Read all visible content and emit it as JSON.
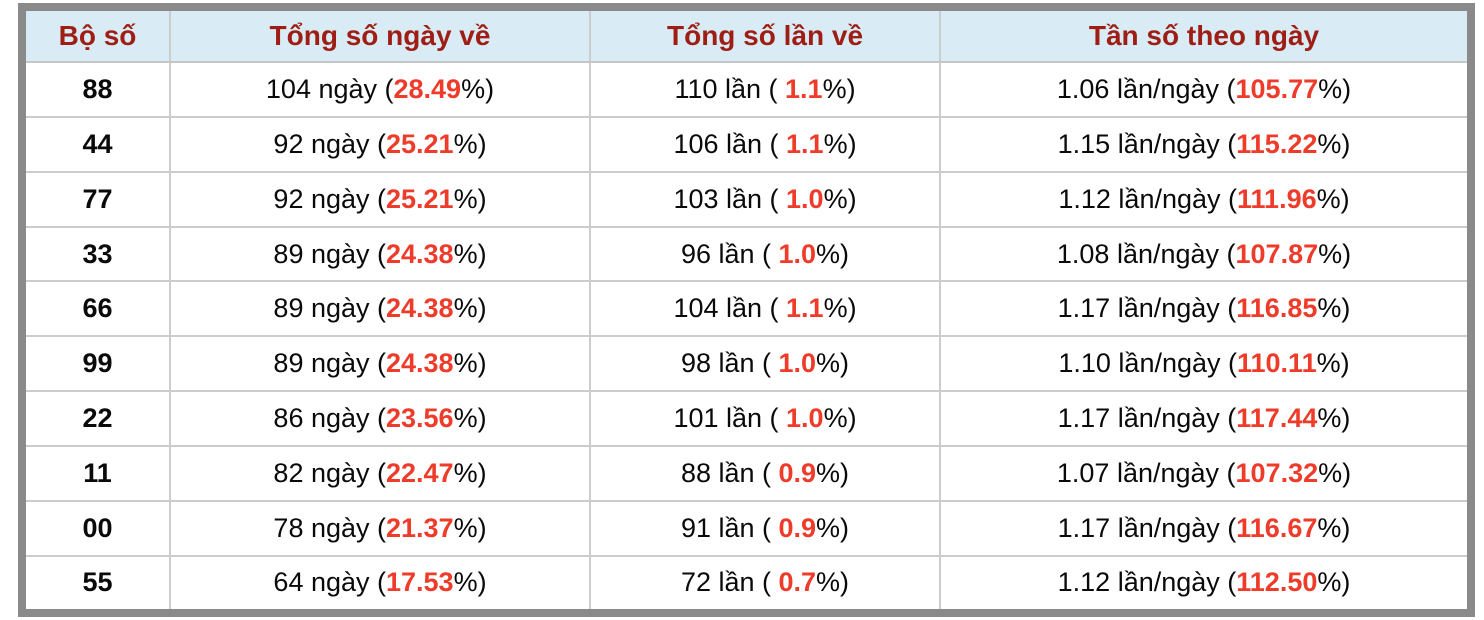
{
  "colors": {
    "frame": "#8a8a8a",
    "header_bg": "#d9ecf5",
    "header_text": "#9e1d15",
    "highlight": "#ee3b2a",
    "gridline": "#cccccc"
  },
  "table": {
    "columns": [
      {
        "label": "Bộ số"
      },
      {
        "label": "Tổng số ngày về"
      },
      {
        "label": "Tổng số lần về"
      },
      {
        "label": "Tần số theo ngày"
      }
    ],
    "rows": [
      {
        "pair": "88",
        "days_pre": "104 ngày (",
        "days_hl": "28.49",
        "days_post": "%)",
        "times_pre": "110 lần ( ",
        "times_hl": "1.1",
        "times_post": "%)",
        "freq_pre": "1.06 lần/ngày (",
        "freq_hl": "105.77",
        "freq_post": "%)"
      },
      {
        "pair": "44",
        "days_pre": "92 ngày (",
        "days_hl": "25.21",
        "days_post": "%)",
        "times_pre": "106 lần ( ",
        "times_hl": "1.1",
        "times_post": "%)",
        "freq_pre": "1.15 lần/ngày (",
        "freq_hl": "115.22",
        "freq_post": "%)"
      },
      {
        "pair": "77",
        "days_pre": "92 ngày (",
        "days_hl": "25.21",
        "days_post": "%)",
        "times_pre": "103 lần ( ",
        "times_hl": "1.0",
        "times_post": "%)",
        "freq_pre": "1.12 lần/ngày (",
        "freq_hl": "111.96",
        "freq_post": "%)"
      },
      {
        "pair": "33",
        "days_pre": "89 ngày (",
        "days_hl": "24.38",
        "days_post": "%)",
        "times_pre": "96 lần ( ",
        "times_hl": "1.0",
        "times_post": "%)",
        "freq_pre": "1.08 lần/ngày (",
        "freq_hl": "107.87",
        "freq_post": "%)"
      },
      {
        "pair": "66",
        "days_pre": "89 ngày (",
        "days_hl": "24.38",
        "days_post": "%)",
        "times_pre": "104 lần ( ",
        "times_hl": "1.1",
        "times_post": "%)",
        "freq_pre": "1.17 lần/ngày (",
        "freq_hl": "116.85",
        "freq_post": "%)"
      },
      {
        "pair": "99",
        "days_pre": "89 ngày (",
        "days_hl": "24.38",
        "days_post": "%)",
        "times_pre": "98 lần ( ",
        "times_hl": "1.0",
        "times_post": "%)",
        "freq_pre": "1.10 lần/ngày (",
        "freq_hl": "110.11",
        "freq_post": "%)"
      },
      {
        "pair": "22",
        "days_pre": "86 ngày (",
        "days_hl": "23.56",
        "days_post": "%)",
        "times_pre": "101 lần ( ",
        "times_hl": "1.0",
        "times_post": "%)",
        "freq_pre": "1.17 lần/ngày (",
        "freq_hl": "117.44",
        "freq_post": "%)"
      },
      {
        "pair": "11",
        "days_pre": "82 ngày (",
        "days_hl": "22.47",
        "days_post": "%)",
        "times_pre": "88 lần ( ",
        "times_hl": "0.9",
        "times_post": "%)",
        "freq_pre": "1.07 lần/ngày (",
        "freq_hl": "107.32",
        "freq_post": "%)"
      },
      {
        "pair": "00",
        "days_pre": "78 ngày (",
        "days_hl": "21.37",
        "days_post": "%)",
        "times_pre": "91 lần ( ",
        "times_hl": "0.9",
        "times_post": "%)",
        "freq_pre": "1.17 lần/ngày (",
        "freq_hl": "116.67",
        "freq_post": "%)"
      },
      {
        "pair": "55",
        "days_pre": "64 ngày (",
        "days_hl": "17.53",
        "days_post": "%)",
        "times_pre": "72 lần ( ",
        "times_hl": "0.7",
        "times_post": "%)",
        "freq_pre": "1.12 lần/ngày (",
        "freq_hl": "112.50",
        "freq_post": "%)"
      }
    ]
  }
}
